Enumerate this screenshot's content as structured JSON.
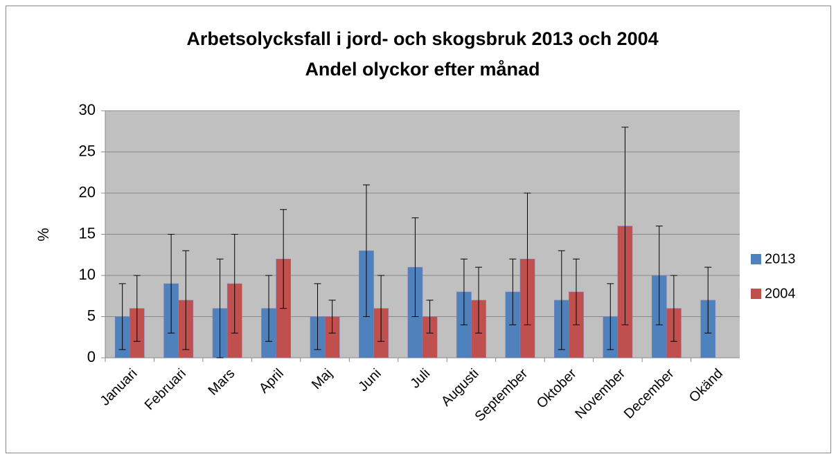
{
  "chart_data": {
    "type": "bar",
    "title": "Arbetsolycksfall i jord- och skogsbruk 2013 och 2004",
    "subtitle": "Andel olyckor efter månad",
    "y_label": "%",
    "categories": [
      "Januari",
      "Februari",
      "Mars",
      "April",
      "Maj",
      "Juni",
      "Juli",
      "Augusti",
      "September",
      "Oktober",
      "November",
      "December",
      "Okänd"
    ],
    "series": [
      {
        "name": "2013",
        "color": "#4f81bd",
        "values": [
          5,
          9,
          6,
          6,
          5,
          13,
          11,
          8,
          8,
          7,
          5,
          10,
          7
        ],
        "errors": [
          4,
          6,
          6,
          4,
          4,
          8,
          6,
          4,
          4,
          6,
          4,
          6,
          4
        ]
      },
      {
        "name": "2004",
        "color": "#c0504d",
        "values": [
          6,
          7,
          9,
          12,
          5,
          6,
          5,
          7,
          12,
          8,
          16,
          6,
          null
        ],
        "errors": [
          4,
          6,
          6,
          6,
          2,
          4,
          2,
          4,
          8,
          4,
          12,
          4,
          null
        ]
      }
    ],
    "ylim": [
      0,
      30
    ],
    "yticks": [
      0,
      5,
      10,
      15,
      20,
      25,
      30
    ],
    "grid": true,
    "legend": "right",
    "plot_background": "#c0c0c0"
  }
}
